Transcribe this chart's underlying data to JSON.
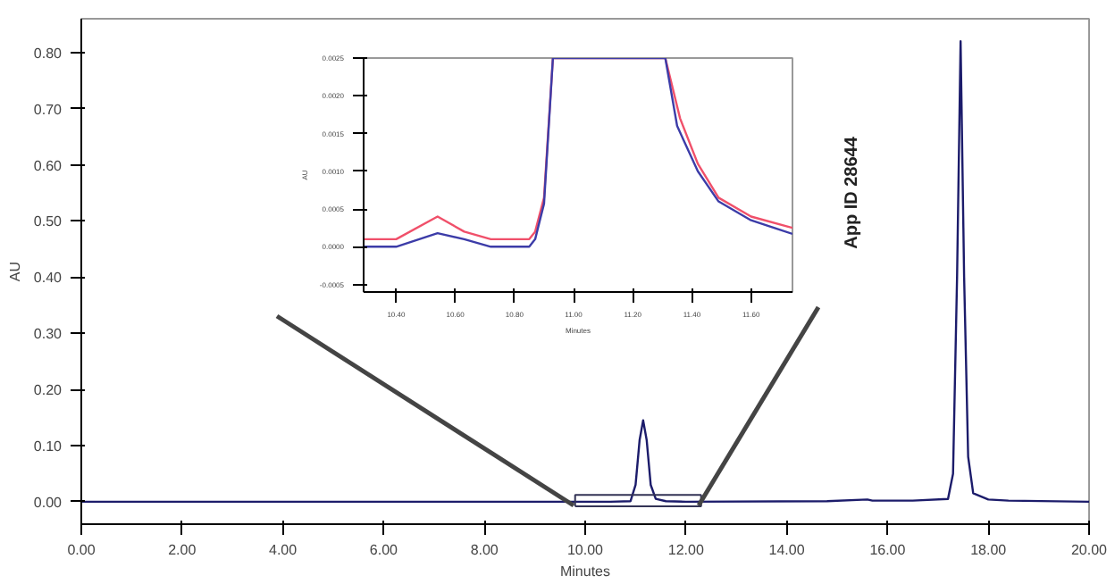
{
  "chart_data": [
    {
      "type": "line",
      "xlabel": "Minutes",
      "ylabel": "AU",
      "xlim": [
        0,
        20
      ],
      "ylim": [
        -0.04,
        0.86
      ],
      "xticks": [
        {
          "value": 0,
          "label": "0.00"
        },
        {
          "value": 2,
          "label": "2.00"
        },
        {
          "value": 4,
          "label": "4.00"
        },
        {
          "value": 6,
          "label": "6.00"
        },
        {
          "value": 8,
          "label": "8.00"
        },
        {
          "value": 10,
          "label": "10.00"
        },
        {
          "value": 12,
          "label": "12.00"
        },
        {
          "value": 14,
          "label": "14.00"
        },
        {
          "value": 16,
          "label": "16.00"
        },
        {
          "value": 18,
          "label": "18.00"
        },
        {
          "value": 20,
          "label": "20.00"
        }
      ],
      "yticks": [
        {
          "value": 0,
          "label": "0.00"
        },
        {
          "value": 0.1,
          "label": "0.10"
        },
        {
          "value": 0.2,
          "label": "0.20"
        },
        {
          "value": 0.3,
          "label": "0.30"
        },
        {
          "value": 0.4,
          "label": "0.40"
        },
        {
          "value": 0.5,
          "label": "0.50"
        },
        {
          "value": 0.6,
          "label": "0.60"
        },
        {
          "value": 0.7,
          "label": "0.70"
        },
        {
          "value": 0.8,
          "label": "0.80"
        }
      ],
      "series": [
        {
          "color": "#1c1c6b",
          "x": [
            0,
            9.8,
            10.5,
            10.9,
            11.0,
            11.08,
            11.15,
            11.22,
            11.3,
            11.4,
            11.6,
            12,
            14.8,
            15.6,
            15.7,
            16.5,
            17.2,
            17.3,
            17.38,
            17.45,
            17.52,
            17.6,
            17.7,
            18,
            18.4,
            20
          ],
          "values": [
            0,
            0,
            0,
            0.001,
            0.03,
            0.11,
            0.145,
            0.11,
            0.03,
            0.005,
            0.001,
            0,
            0.001,
            0.004,
            0.002,
            0.002,
            0.005,
            0.05,
            0.4,
            0.82,
            0.4,
            0.08,
            0.015,
            0.004,
            0.002,
            0
          ]
        }
      ],
      "annotations": [
        "App ID 28644"
      ],
      "grid": false,
      "marker": "none",
      "line_style": "solid"
    },
    {
      "type": "line",
      "xlabel": "Minutes",
      "ylabel": "AU",
      "xlim": [
        10.29,
        11.74
      ],
      "ylim": [
        -0.0006,
        0.0025
      ],
      "xticks": [
        {
          "value": 10.4,
          "label": "10.40"
        },
        {
          "value": 10.6,
          "label": "10.60"
        },
        {
          "value": 10.8,
          "label": "10.80"
        },
        {
          "value": 11.0,
          "label": "11.00"
        },
        {
          "value": 11.2,
          "label": "11.20"
        },
        {
          "value": 11.4,
          "label": "11.40"
        },
        {
          "value": 11.6,
          "label": "11.60"
        }
      ],
      "yticks": [
        {
          "value": -0.0005,
          "label": "-0.0005"
        },
        {
          "value": 0,
          "label": "0.0000"
        },
        {
          "value": 0.0005,
          "label": "0.0005"
        },
        {
          "value": 0.001,
          "label": "0.0010"
        },
        {
          "value": 0.0015,
          "label": "0.0015"
        },
        {
          "value": 0.002,
          "label": "0.0020"
        },
        {
          "value": 0.0025,
          "label": "0.0025"
        }
      ],
      "series": [
        {
          "color": "#f0506a",
          "x": [
            10.29,
            10.4,
            10.54,
            10.63,
            10.72,
            10.85,
            10.87,
            10.9,
            10.93,
            11.31,
            11.36,
            11.42,
            11.49,
            11.6,
            11.74
          ],
          "values": [
            0.0001,
            0.0001,
            0.0004,
            0.0002,
            0.0001,
            0.0001,
            0.0002,
            0.00065,
            0.0025,
            0.0025,
            0.0017,
            0.0011,
            0.00065,
            0.0004,
            0.00025
          ]
        },
        {
          "color": "#3c3ca8",
          "x": [
            10.29,
            10.4,
            10.54,
            10.63,
            10.72,
            10.85,
            10.87,
            10.9,
            10.93,
            11.31,
            11.35,
            11.42,
            11.49,
            11.6,
            11.74
          ],
          "values": [
            0,
            0,
            0.00018,
            0.0001,
            0,
            0,
            0.0001,
            0.00057,
            0.0025,
            0.0025,
            0.0016,
            0.001,
            0.0006,
            0.00035,
            0.00017
          ]
        }
      ],
      "grid": false,
      "marker": "none",
      "line_style": "solid"
    }
  ]
}
